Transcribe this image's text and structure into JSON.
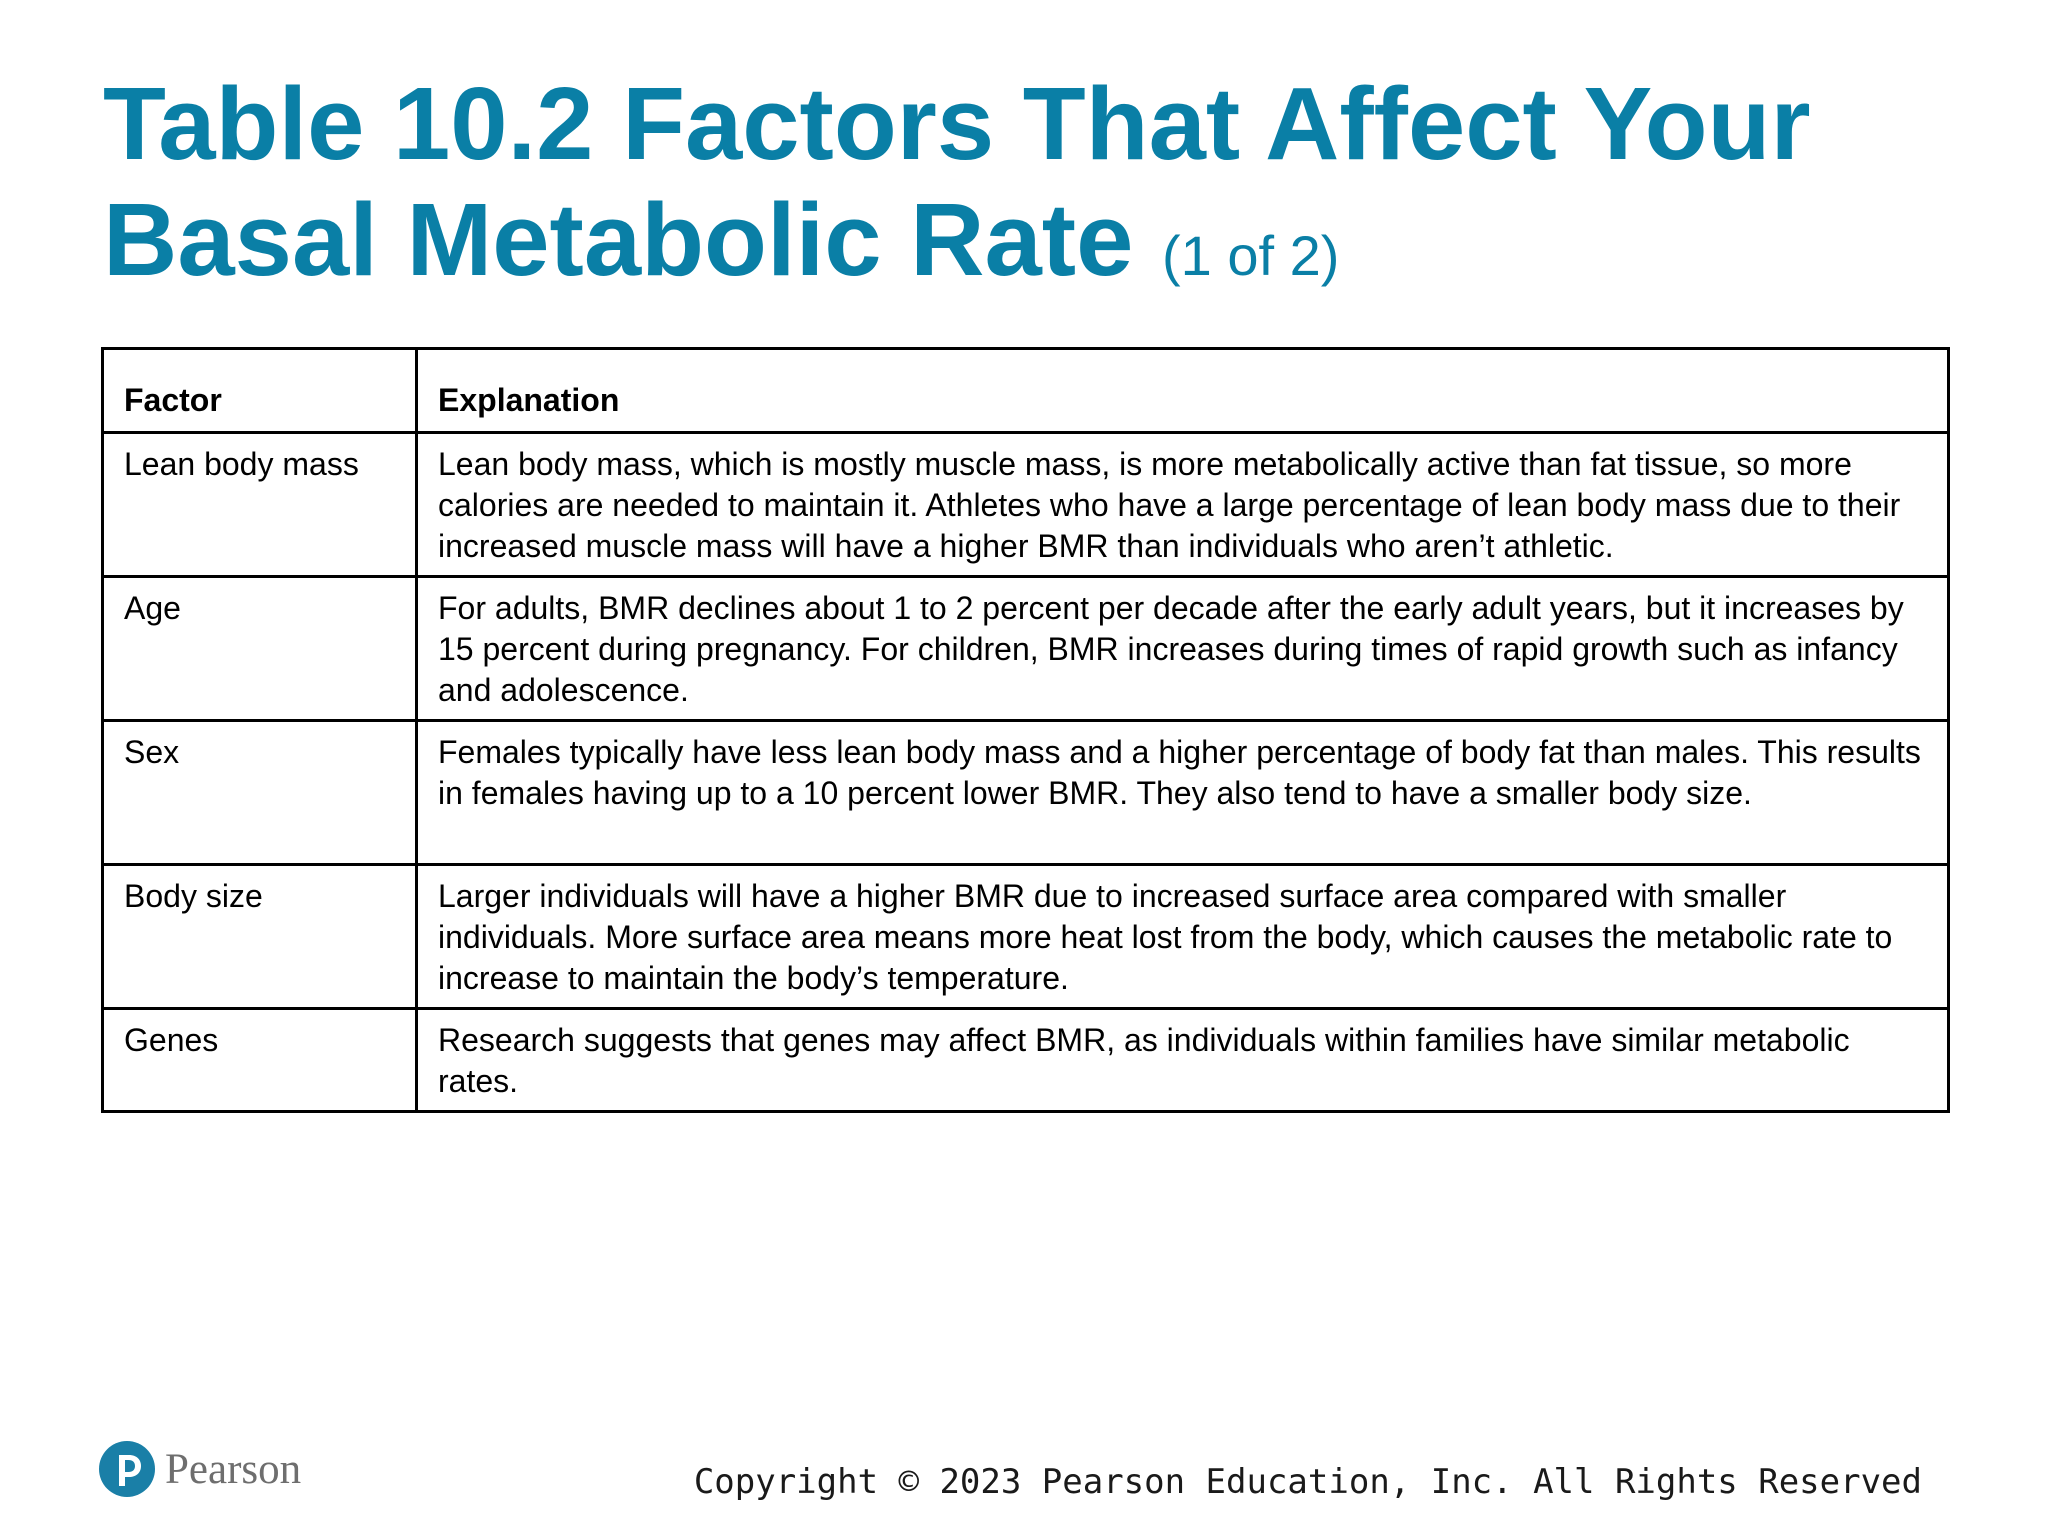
{
  "slide": {
    "title": "Table 10.2 Factors That Affect Your Basal Metabolic Rate",
    "subtitle": "(1 of 2)"
  },
  "table": {
    "headers": [
      "Factor",
      "Explanation"
    ],
    "rows": [
      {
        "factor": "Lean body mass",
        "explanation": "Lean body mass, which is mostly muscle mass, is more metabolically active than fat tissue, so more calories are needed to maintain it. Athletes who have a large percentage of lean body mass due to their increased muscle mass will have a higher BMR than individuals who aren’t athletic."
      },
      {
        "factor": "Age",
        "explanation": "For adults, BMR declines about 1 to 2 percent per decade after the early adult years, but it increases by 15 percent during pregnancy. For children, BMR increases during times of rapid growth such as infancy and adolescence."
      },
      {
        "factor": "Sex",
        "explanation": "Females typically have less lean body mass and a higher percentage of body fat than males. This results in females having up to a 10 percent lower BMR. They also tend to have a smaller body size."
      },
      {
        "factor": "Body size",
        "explanation": "Larger individuals will have a higher BMR due to increased surface area compared with smaller individuals. More surface area means more heat lost from the body, which causes the metabolic rate to increase to maintain the body’s temperature."
      },
      {
        "factor": "Genes",
        "explanation": "Research suggests that genes may affect BMR, as individuals within families have similar metabolic rates."
      }
    ]
  },
  "footer": {
    "logo_text": "Pearson",
    "logo_icon": "pearson-p-icon",
    "copyright": "Copyright © 2023 Pearson Education, Inc. All Rights Reserved"
  },
  "colors": {
    "title": "#0a7fa6",
    "logo_circle": "#1a7fa7",
    "text": "#000000"
  }
}
